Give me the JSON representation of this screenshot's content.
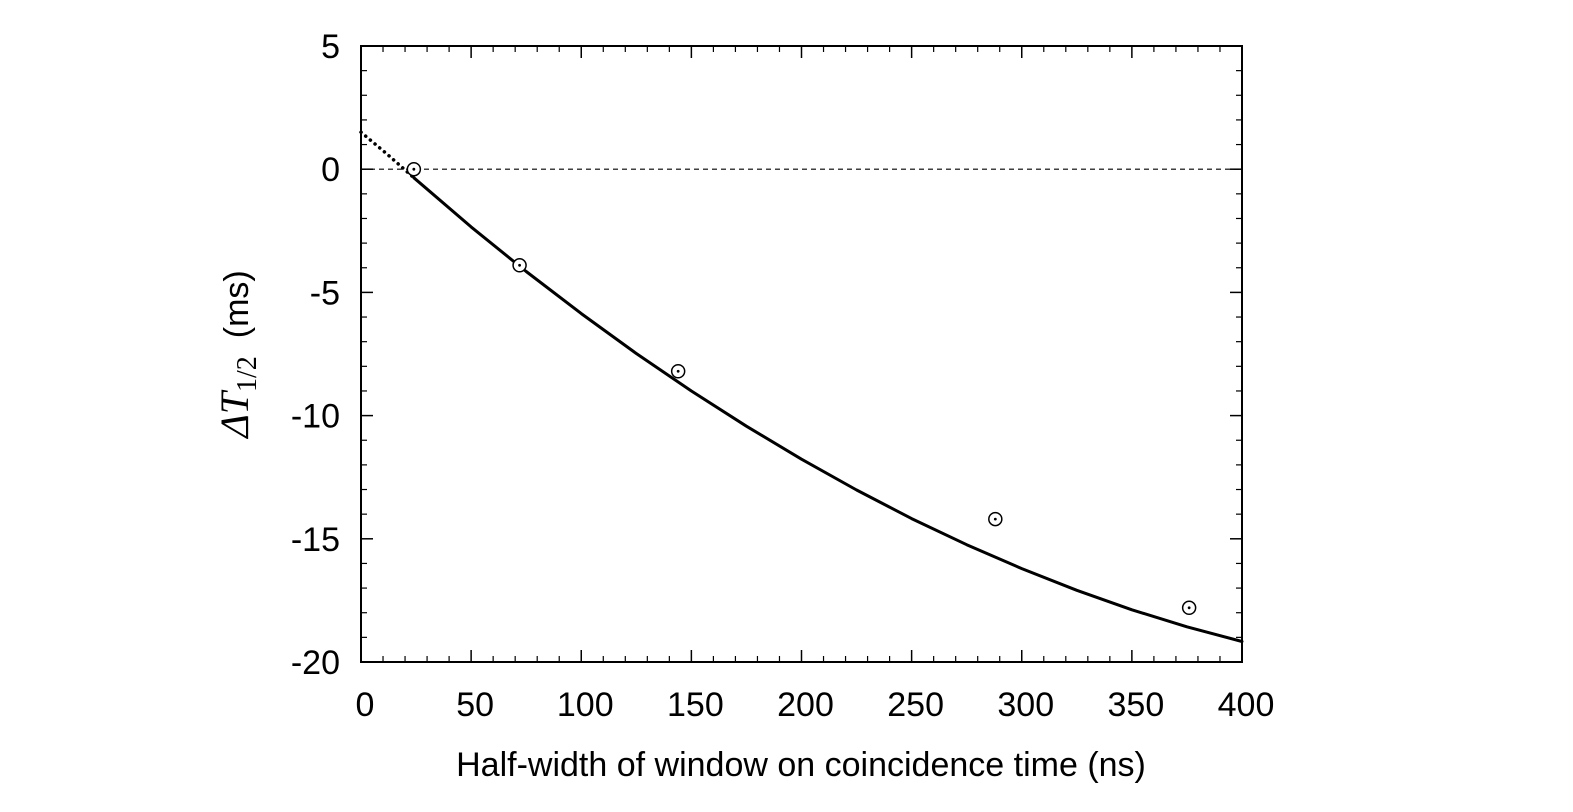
{
  "chart_data": {
    "type": "scatter",
    "xlabel": "Half-width of window on coincidence time  (ns)",
    "ylabel": {
      "symbol": "ΔT",
      "subscript": "1/2",
      "unit": "(ms)"
    },
    "xlim": [
      0,
      400
    ],
    "ylim": [
      -20,
      5
    ],
    "x_ticks": [
      0,
      50,
      100,
      150,
      200,
      250,
      300,
      350,
      400
    ],
    "y_ticks": [
      -20,
      -15,
      -10,
      -5,
      0,
      5
    ],
    "x_minor_step": 10,
    "y_minor_step": 1,
    "grid": false,
    "reference_line": {
      "y": 0,
      "style": "dashed"
    },
    "series": [
      {
        "kind": "points",
        "marker": "circle-dot",
        "x": [
          24,
          72,
          144,
          288,
          376
        ],
        "y": [
          0.0,
          -3.9,
          -8.2,
          -14.2,
          -17.8
        ]
      },
      {
        "kind": "fit",
        "style": "solid",
        "x": [
          24,
          50,
          75,
          100,
          125,
          150,
          175,
          200,
          225,
          250,
          275,
          300,
          325,
          350,
          375,
          400
        ],
        "y": [
          -0.35,
          -2.34,
          -4.15,
          -5.86,
          -7.48,
          -9.0,
          -10.43,
          -11.77,
          -13.02,
          -14.18,
          -15.24,
          -16.21,
          -17.09,
          -17.88,
          -18.57,
          -19.17
        ]
      },
      {
        "kind": "extrapolation",
        "style": "dotted",
        "x": [
          0,
          12,
          24
        ],
        "y": [
          1.5,
          0.6,
          -0.35
        ]
      }
    ]
  }
}
